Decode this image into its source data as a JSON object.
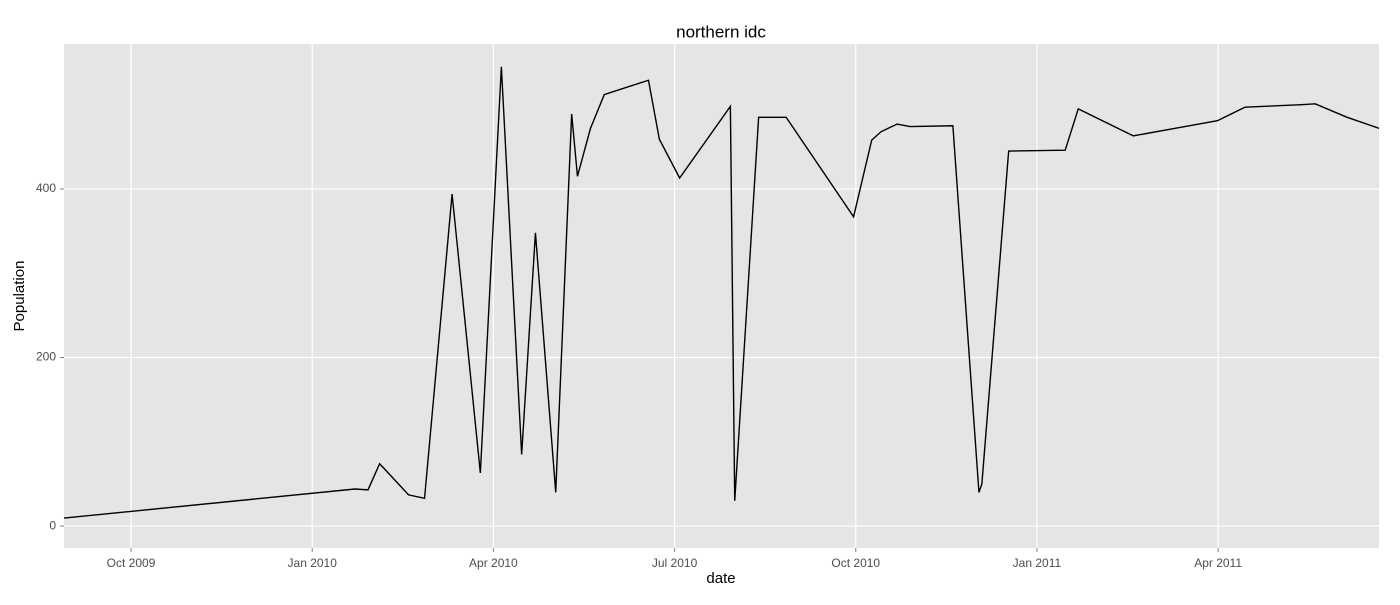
{
  "chart_data": {
    "type": "line",
    "title": "northern idc",
    "x_label": "date",
    "y_label": "Population",
    "x": [
      2009.6575,
      2010.059,
      2010.077,
      2010.093,
      2010.133,
      2010.155,
      2010.193,
      2010.232,
      2010.261,
      2010.289,
      2010.308,
      2010.336,
      2010.358,
      2010.366,
      2010.384,
      2010.403,
      2010.464,
      2010.479,
      2010.507,
      2010.577,
      2010.583,
      2010.616,
      2010.654,
      2010.747,
      2010.772,
      2010.785,
      2010.807,
      2010.825,
      2010.884,
      2010.92,
      2010.924,
      2010.961,
      2011.039,
      2011.057,
      2011.133,
      2011.249,
      2011.287,
      2011.365,
      2011.384,
      2011.428,
      2011.472
    ],
    "series": [
      {
        "name": "Population",
        "color": "#000000",
        "values": [
          9.5,
          44,
          43,
          74,
          37,
          33,
          394,
          63,
          545,
          85,
          348,
          40,
          489,
          415,
          472,
          512,
          529,
          459,
          413,
          498,
          30,
          485,
          485,
          367,
          458,
          468,
          477,
          474,
          475,
          40,
          50,
          445,
          446,
          495,
          463,
          481,
          497,
          500,
          501,
          485,
          472
        ]
      }
    ],
    "xlim": [
      2009.6575,
      2011.472
    ],
    "ylim": [
      -26,
      572
    ],
    "xticks": [
      {
        "value": 2009.75,
        "label": "Oct 2009"
      },
      {
        "value": 2010,
        "label": "Jan 2010"
      },
      {
        "value": 2010.25,
        "label": "Apr 2010"
      },
      {
        "value": 2010.5,
        "label": "Jul 2010"
      },
      {
        "value": 2010.75,
        "label": "Oct 2010"
      },
      {
        "value": 2011,
        "label": "Jan 2011"
      },
      {
        "value": 2011.25,
        "label": "Apr 2011"
      }
    ],
    "yticks": [
      0,
      200,
      400
    ],
    "grid": true
  }
}
